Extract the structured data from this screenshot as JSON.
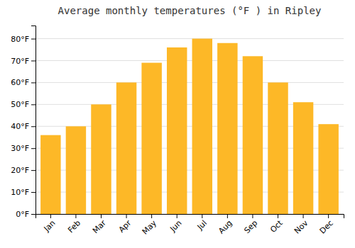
{
  "chart_data": {
    "type": "bar",
    "title": "Average monthly temperatures (°F ) in Ripley",
    "categories": [
      "Jan",
      "Feb",
      "Mar",
      "Apr",
      "May",
      "Jun",
      "Jul",
      "Aug",
      "Sep",
      "Oct",
      "Nov",
      "Dec"
    ],
    "values": [
      36,
      40,
      50,
      60,
      69,
      76,
      80,
      78,
      72,
      60,
      51,
      41
    ],
    "color": "#FDB827",
    "ylim": [
      0,
      86
    ],
    "yticks": [
      {
        "value": 0,
        "label": "0°F"
      },
      {
        "value": 10,
        "label": "10°F"
      },
      {
        "value": 20,
        "label": "20°F"
      },
      {
        "value": 30,
        "label": "30°F"
      },
      {
        "value": 40,
        "label": "40°F"
      },
      {
        "value": 50,
        "label": "50°F"
      },
      {
        "value": 60,
        "label": "60°F"
      },
      {
        "value": 70,
        "label": "70°F"
      },
      {
        "value": 80,
        "label": "80°F"
      }
    ],
    "grid": true
  }
}
